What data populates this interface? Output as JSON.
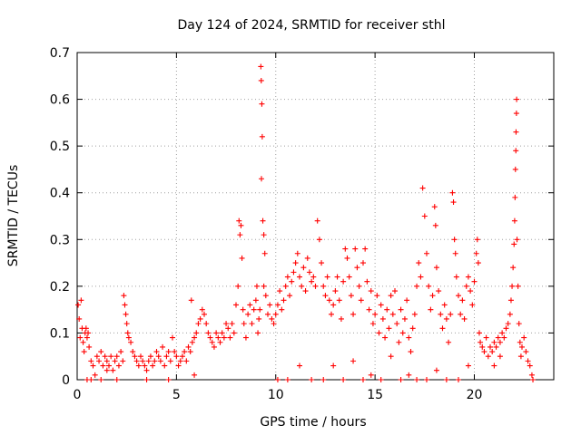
{
  "chart_data": {
    "type": "scatter",
    "title": "Day 124 of 2024, SRMTID for receiver sthl",
    "xlabel": "GPS time / hours",
    "ylabel": "SRMTID / TECUs",
    "xlim": [
      0,
      24
    ],
    "ylim": [
      0,
      0.7
    ],
    "xticks": [
      0,
      5,
      10,
      15,
      20
    ],
    "yticks": [
      0,
      0.1,
      0.2,
      0.3,
      0.4,
      0.5,
      0.6,
      0.7
    ],
    "grid": true,
    "marker": "+",
    "color": "#ff0000",
    "series": [
      {
        "name": "SRMTID",
        "points": [
          [
            0.05,
            0.16
          ],
          [
            0.1,
            0.13
          ],
          [
            0.15,
            0.09
          ],
          [
            0.2,
            0.17
          ],
          [
            0.25,
            0.11
          ],
          [
            0.3,
            0.08
          ],
          [
            0.35,
            0.06
          ],
          [
            0.4,
            0.1
          ],
          [
            0.45,
            0.11
          ],
          [
            0.5,
            0.09
          ],
          [
            0.55,
            0.1
          ],
          [
            0.6,
            0.07
          ],
          [
            0.7,
            0.04
          ],
          [
            0.8,
            0.03
          ],
          [
            0.9,
            0.01
          ],
          [
            0.5,
            0.0
          ],
          [
            0.7,
            0.0
          ],
          [
            1.0,
            0.05
          ],
          [
            1.1,
            0.04
          ],
          [
            1.2,
            0.06
          ],
          [
            1.3,
            0.03
          ],
          [
            1.4,
            0.05
          ],
          [
            1.5,
            0.04
          ],
          [
            1.6,
            0.03
          ],
          [
            1.7,
            0.05
          ],
          [
            1.8,
            0.02
          ],
          [
            1.9,
            0.04
          ],
          [
            2.0,
            0.05
          ],
          [
            2.1,
            0.03
          ],
          [
            2.2,
            0.06
          ],
          [
            2.3,
            0.04
          ],
          [
            1.5,
            0.02
          ],
          [
            1.2,
            0.0
          ],
          [
            2.0,
            0.0
          ],
          [
            2.35,
            0.18
          ],
          [
            2.4,
            0.16
          ],
          [
            2.45,
            0.14
          ],
          [
            2.5,
            0.12
          ],
          [
            2.55,
            0.1
          ],
          [
            2.6,
            0.09
          ],
          [
            2.7,
            0.08
          ],
          [
            2.8,
            0.06
          ],
          [
            2.9,
            0.05
          ],
          [
            3.0,
            0.04
          ],
          [
            3.1,
            0.03
          ],
          [
            3.2,
            0.05
          ],
          [
            3.3,
            0.04
          ],
          [
            3.4,
            0.03
          ],
          [
            3.5,
            0.02
          ],
          [
            3.6,
            0.04
          ],
          [
            3.7,
            0.05
          ],
          [
            3.8,
            0.03
          ],
          [
            3.9,
            0.04
          ],
          [
            4.0,
            0.06
          ],
          [
            4.1,
            0.05
          ],
          [
            4.2,
            0.04
          ],
          [
            4.3,
            0.07
          ],
          [
            4.4,
            0.03
          ],
          [
            4.5,
            0.05
          ],
          [
            4.6,
            0.06
          ],
          [
            4.7,
            0.04
          ],
          [
            4.8,
            0.09
          ],
          [
            4.9,
            0.06
          ],
          [
            5.0,
            0.05
          ],
          [
            5.1,
            0.03
          ],
          [
            5.2,
            0.04
          ],
          [
            5.3,
            0.05
          ],
          [
            5.4,
            0.06
          ],
          [
            5.5,
            0.04
          ],
          [
            5.6,
            0.07
          ],
          [
            5.7,
            0.06
          ],
          [
            5.75,
            0.17
          ],
          [
            5.8,
            0.08
          ],
          [
            5.9,
            0.09
          ],
          [
            6.0,
            0.1
          ],
          [
            6.1,
            0.12
          ],
          [
            6.2,
            0.13
          ],
          [
            6.3,
            0.15
          ],
          [
            6.4,
            0.14
          ],
          [
            6.5,
            0.12
          ],
          [
            5.9,
            0.01
          ],
          [
            4.6,
            0.0
          ],
          [
            3.5,
            0.0
          ],
          [
            6.6,
            0.1
          ],
          [
            6.7,
            0.09
          ],
          [
            6.8,
            0.08
          ],
          [
            6.9,
            0.07
          ],
          [
            7.0,
            0.1
          ],
          [
            7.1,
            0.09
          ],
          [
            7.2,
            0.08
          ],
          [
            7.3,
            0.1
          ],
          [
            7.4,
            0.09
          ],
          [
            7.5,
            0.12
          ],
          [
            7.6,
            0.11
          ],
          [
            7.7,
            0.09
          ],
          [
            7.8,
            0.12
          ],
          [
            7.9,
            0.1
          ],
          [
            8.0,
            0.16
          ],
          [
            8.1,
            0.2
          ],
          [
            8.15,
            0.34
          ],
          [
            8.2,
            0.31
          ],
          [
            8.25,
            0.33
          ],
          [
            8.3,
            0.26
          ],
          [
            8.35,
            0.15
          ],
          [
            8.4,
            0.12
          ],
          [
            8.5,
            0.09
          ],
          [
            8.6,
            0.14
          ],
          [
            8.7,
            0.16
          ],
          [
            8.8,
            0.12
          ],
          [
            8.9,
            0.15
          ],
          [
            9.0,
            0.17
          ],
          [
            9.05,
            0.2
          ],
          [
            9.1,
            0.1
          ],
          [
            9.15,
            0.13
          ],
          [
            9.2,
            0.15
          ],
          [
            9.25,
            0.67
          ],
          [
            9.27,
            0.64
          ],
          [
            9.3,
            0.59
          ],
          [
            9.32,
            0.52
          ],
          [
            9.28,
            0.43
          ],
          [
            9.35,
            0.34
          ],
          [
            9.4,
            0.31
          ],
          [
            9.45,
            0.27
          ],
          [
            9.4,
            0.2
          ],
          [
            9.5,
            0.18
          ],
          [
            9.6,
            0.14
          ],
          [
            9.7,
            0.16
          ],
          [
            9.8,
            0.13
          ],
          [
            9.9,
            0.12
          ],
          [
            10.0,
            0.14
          ],
          [
            10.1,
            0.16
          ],
          [
            10.2,
            0.19
          ],
          [
            10.3,
            0.15
          ],
          [
            10.4,
            0.17
          ],
          [
            10.5,
            0.2
          ],
          [
            10.6,
            0.22
          ],
          [
            10.7,
            0.18
          ],
          [
            10.8,
            0.21
          ],
          [
            10.9,
            0.23
          ],
          [
            11.0,
            0.25
          ],
          [
            11.1,
            0.27
          ],
          [
            11.2,
            0.22
          ],
          [
            11.3,
            0.2
          ],
          [
            11.4,
            0.24
          ],
          [
            11.5,
            0.19
          ],
          [
            11.6,
            0.26
          ],
          [
            11.7,
            0.23
          ],
          [
            11.8,
            0.21
          ],
          [
            11.9,
            0.22
          ],
          [
            12.0,
            0.2
          ],
          [
            12.1,
            0.34
          ],
          [
            12.2,
            0.3
          ],
          [
            12.3,
            0.25
          ],
          [
            12.4,
            0.2
          ],
          [
            12.5,
            0.18
          ],
          [
            12.6,
            0.22
          ],
          [
            12.7,
            0.17
          ],
          [
            12.8,
            0.14
          ],
          [
            12.9,
            0.16
          ],
          [
            13.0,
            0.19
          ],
          [
            13.1,
            0.22
          ],
          [
            13.2,
            0.17
          ],
          [
            13.3,
            0.13
          ],
          [
            13.4,
            0.21
          ],
          [
            13.5,
            0.28
          ],
          [
            13.6,
            0.26
          ],
          [
            13.7,
            0.22
          ],
          [
            13.8,
            0.18
          ],
          [
            13.9,
            0.14
          ],
          [
            14.0,
            0.28
          ],
          [
            14.1,
            0.24
          ],
          [
            14.2,
            0.2
          ],
          [
            14.3,
            0.17
          ],
          [
            14.4,
            0.25
          ],
          [
            14.5,
            0.28
          ],
          [
            14.6,
            0.21
          ],
          [
            14.7,
            0.15
          ],
          [
            14.8,
            0.19
          ],
          [
            14.9,
            0.12
          ],
          [
            15.0,
            0.14
          ],
          [
            15.1,
            0.18
          ],
          [
            15.2,
            0.1
          ],
          [
            15.3,
            0.16
          ],
          [
            15.4,
            0.13
          ],
          [
            15.5,
            0.09
          ],
          [
            15.6,
            0.15
          ],
          [
            15.7,
            0.11
          ],
          [
            15.8,
            0.18
          ],
          [
            15.9,
            0.14
          ],
          [
            16.0,
            0.19
          ],
          [
            16.1,
            0.12
          ],
          [
            16.2,
            0.08
          ],
          [
            16.3,
            0.15
          ],
          [
            16.4,
            0.1
          ],
          [
            16.5,
            0.13
          ],
          [
            16.6,
            0.17
          ],
          [
            16.7,
            0.09
          ],
          [
            16.8,
            0.06
          ],
          [
            16.9,
            0.11
          ],
          [
            17.0,
            0.14
          ],
          [
            17.1,
            0.2
          ],
          [
            17.2,
            0.25
          ],
          [
            17.3,
            0.22
          ],
          [
            17.4,
            0.41
          ],
          [
            17.5,
            0.35
          ],
          [
            17.6,
            0.27
          ],
          [
            17.7,
            0.2
          ],
          [
            17.8,
            0.15
          ],
          [
            17.9,
            0.18
          ],
          [
            18.0,
            0.37
          ],
          [
            18.05,
            0.33
          ],
          [
            18.1,
            0.24
          ],
          [
            18.2,
            0.19
          ],
          [
            18.3,
            0.14
          ],
          [
            18.4,
            0.11
          ],
          [
            18.5,
            0.16
          ],
          [
            18.6,
            0.13
          ],
          [
            18.7,
            0.08
          ],
          [
            18.8,
            0.14
          ],
          [
            18.9,
            0.4
          ],
          [
            18.95,
            0.38
          ],
          [
            19.0,
            0.3
          ],
          [
            19.05,
            0.27
          ],
          [
            19.1,
            0.22
          ],
          [
            19.2,
            0.18
          ],
          [
            19.3,
            0.14
          ],
          [
            19.4,
            0.17
          ],
          [
            19.5,
            0.13
          ],
          [
            19.6,
            0.2
          ],
          [
            19.7,
            0.22
          ],
          [
            19.8,
            0.19
          ],
          [
            19.9,
            0.16
          ],
          [
            20.0,
            0.21
          ],
          [
            20.1,
            0.27
          ],
          [
            20.15,
            0.3
          ],
          [
            20.2,
            0.25
          ],
          [
            10.1,
            0.0
          ],
          [
            10.6,
            0.0
          ],
          [
            11.2,
            0.03
          ],
          [
            11.8,
            0.0
          ],
          [
            12.4,
            0.0
          ],
          [
            12.9,
            0.03
          ],
          [
            13.4,
            0.0
          ],
          [
            13.9,
            0.04
          ],
          [
            14.4,
            0.0
          ],
          [
            14.8,
            0.01
          ],
          [
            15.3,
            0.0
          ],
          [
            15.8,
            0.05
          ],
          [
            16.3,
            0.0
          ],
          [
            16.7,
            0.01
          ],
          [
            17.1,
            0.0
          ],
          [
            17.6,
            0.0
          ],
          [
            18.1,
            0.02
          ],
          [
            18.6,
            0.0
          ],
          [
            19.2,
            0.0
          ],
          [
            19.7,
            0.03
          ],
          [
            20.25,
            0.1
          ],
          [
            20.3,
            0.08
          ],
          [
            20.4,
            0.07
          ],
          [
            20.5,
            0.06
          ],
          [
            20.6,
            0.09
          ],
          [
            20.7,
            0.05
          ],
          [
            20.8,
            0.07
          ],
          [
            20.9,
            0.06
          ],
          [
            21.0,
            0.08
          ],
          [
            21.1,
            0.07
          ],
          [
            21.2,
            0.09
          ],
          [
            21.3,
            0.08
          ],
          [
            21.4,
            0.1
          ],
          [
            21.5,
            0.09
          ],
          [
            21.6,
            0.11
          ],
          [
            21.7,
            0.12
          ],
          [
            21.8,
            0.14
          ],
          [
            21.85,
            0.17
          ],
          [
            21.9,
            0.2
          ],
          [
            21.95,
            0.24
          ],
          [
            22.0,
            0.29
          ],
          [
            22.03,
            0.34
          ],
          [
            22.05,
            0.39
          ],
          [
            22.07,
            0.45
          ],
          [
            22.09,
            0.49
          ],
          [
            22.1,
            0.53
          ],
          [
            22.12,
            0.57
          ],
          [
            22.13,
            0.6
          ],
          [
            22.15,
            0.3
          ],
          [
            22.2,
            0.2
          ],
          [
            22.25,
            0.12
          ],
          [
            22.3,
            0.08
          ],
          [
            22.35,
            0.05
          ],
          [
            22.4,
            0.07
          ],
          [
            22.5,
            0.09
          ],
          [
            22.6,
            0.06
          ],
          [
            22.7,
            0.04
          ],
          [
            22.8,
            0.03
          ],
          [
            22.9,
            0.01
          ],
          [
            22.95,
            0.0
          ],
          [
            21.0,
            0.03
          ],
          [
            21.3,
            0.05
          ]
        ]
      }
    ]
  }
}
